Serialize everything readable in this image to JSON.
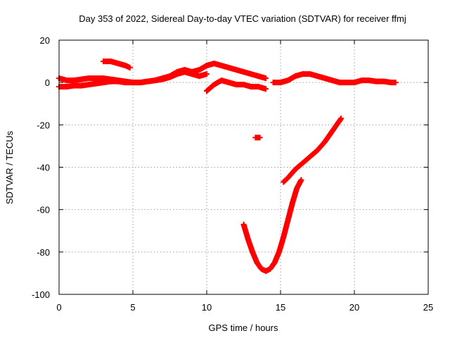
{
  "chart_data": {
    "type": "scatter",
    "title": "Day 353 of 2022, Sidereal Day-to-day VTEC variation (SDTVAR) for receiver ffmj",
    "xlabel": "GPS time / hours",
    "ylabel": "SDTVAR / TECUs",
    "xlim": [
      0,
      25
    ],
    "ylim": [
      -100,
      20
    ],
    "xticks": [
      "0",
      "5",
      "10",
      "15",
      "20",
      "25"
    ],
    "yticks": [
      "-100",
      "-80",
      "-60",
      "-40",
      "-20",
      "0",
      "20"
    ],
    "grid": true,
    "legend": "none",
    "series_color": "#ff0000",
    "series": [
      {
        "x": [
          0,
          0.5,
          1,
          1.5,
          2,
          2.5,
          3,
          3.5,
          4,
          4.5,
          5,
          5.5,
          6,
          6.5,
          7,
          7.5,
          8,
          8.5,
          9,
          9.5,
          10,
          10.5,
          11,
          11.5,
          12,
          12.5,
          13,
          13.5,
          14
        ],
        "y": [
          2,
          1,
          1,
          1.5,
          2,
          2,
          2,
          1.5,
          1,
          0.5,
          0,
          0,
          0.5,
          1,
          2,
          3,
          5,
          6,
          5,
          6,
          8,
          9,
          8,
          7,
          6,
          5,
          4,
          3,
          2
        ]
      },
      {
        "x": [
          0,
          0.5,
          1,
          1.5,
          2,
          2.5,
          3,
          3.5,
          4,
          4.5,
          5,
          5.5,
          6,
          6.5,
          7,
          7.5,
          8,
          8.5,
          9,
          9.5,
          10
        ],
        "y": [
          -2,
          -2,
          -1.5,
          -1.5,
          -1,
          -0.5,
          0,
          0.5,
          0.5,
          0,
          0,
          0,
          0.5,
          1,
          1.5,
          2.5,
          4,
          5,
          4,
          3,
          4
        ]
      },
      {
        "x": [
          10,
          10.5,
          11,
          11.5,
          12,
          12.5,
          13,
          13.5,
          14
        ],
        "y": [
          -4,
          -1,
          1,
          0,
          -1,
          -1,
          -2,
          -2,
          -3
        ]
      },
      {
        "x": [
          3,
          3.5,
          4,
          4.5,
          4.8
        ],
        "y": [
          10,
          10,
          9,
          8,
          7
        ]
      },
      {
        "x": [
          14.5,
          15,
          15.5,
          16,
          16.5,
          17,
          17.5,
          18,
          18.5,
          19,
          19.5,
          20,
          20.5,
          21,
          21.5,
          22,
          22.5,
          22.8
        ],
        "y": [
          0,
          0,
          1,
          3,
          4,
          4,
          3,
          2,
          1,
          0,
          0,
          0,
          1,
          1,
          0.5,
          0.5,
          0,
          0
        ]
      },
      {
        "x": [
          13.3,
          13.6
        ],
        "y": [
          -26,
          -26
        ]
      },
      {
        "x": [
          12.5,
          12.8,
          13.1,
          13.4,
          13.7,
          14,
          14.3,
          14.6,
          14.9,
          15.2,
          15.5,
          15.8,
          16.1,
          16.4
        ],
        "y": [
          -67,
          -74,
          -80,
          -85,
          -88,
          -89,
          -88,
          -85,
          -80,
          -73,
          -65,
          -57,
          -50,
          -46
        ]
      },
      {
        "x": [
          15.2,
          15.5,
          16,
          16.5,
          17,
          17.5,
          18,
          18.5,
          19.1
        ],
        "y": [
          -47,
          -45,
          -41,
          -38,
          -35,
          -32,
          -28,
          -23,
          -17
        ]
      }
    ]
  }
}
